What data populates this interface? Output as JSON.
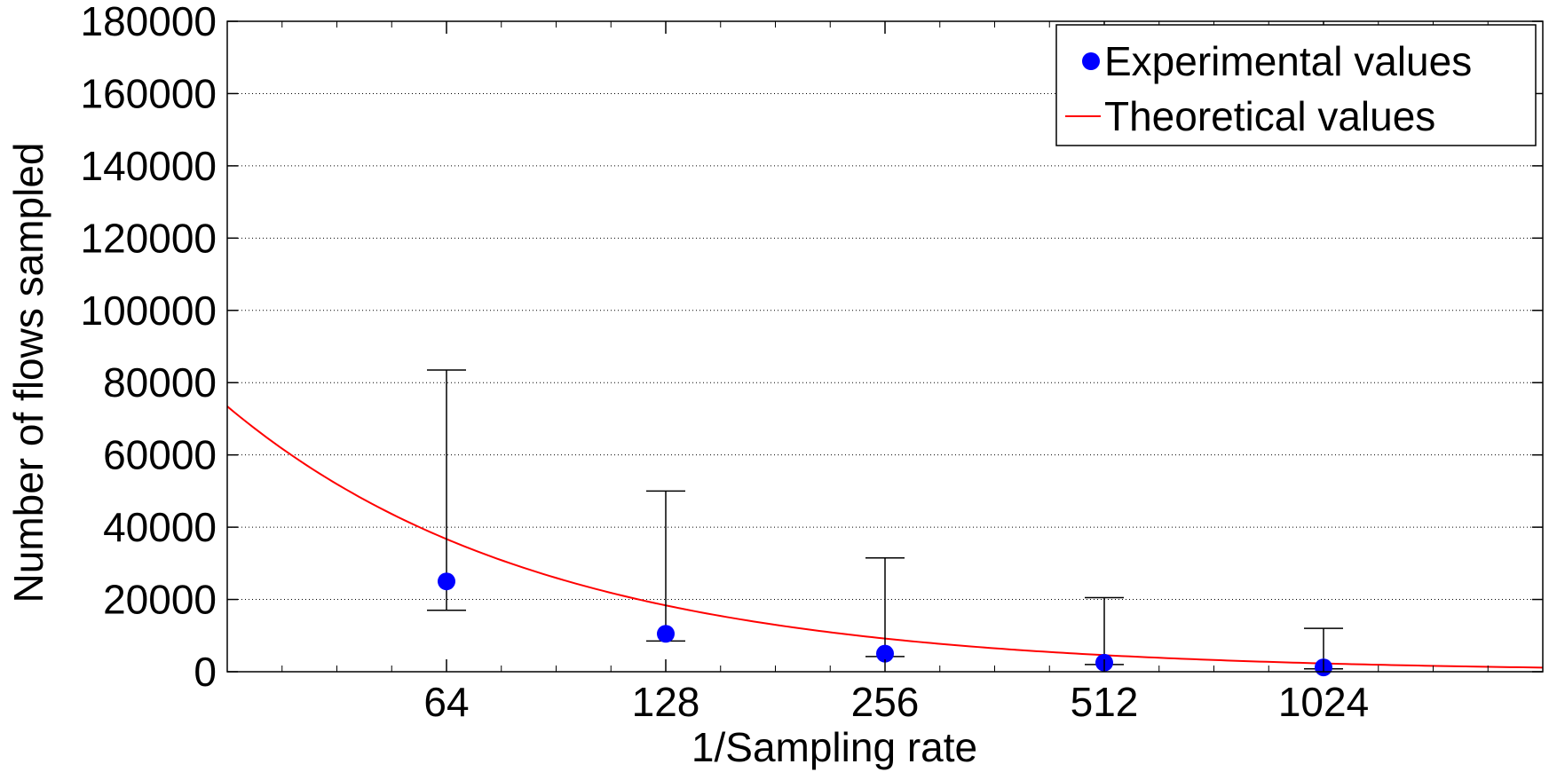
{
  "chart_data": {
    "type": "scatter",
    "xlabel": "1/Sampling rate",
    "ylabel": "Number of flows sampled",
    "x_scale": "log2",
    "xlim": [
      32,
      2048
    ],
    "ylim": [
      0,
      180000
    ],
    "x_ticks": [
      64,
      128,
      256,
      512,
      1024
    ],
    "x_tick_labels": [
      "64",
      "128",
      "256",
      "512",
      "1024"
    ],
    "y_ticks": [
      0,
      20000,
      40000,
      60000,
      80000,
      100000,
      120000,
      140000,
      160000,
      180000
    ],
    "y_tick_labels": [
      "0",
      "20000",
      "40000",
      "60000",
      "80000",
      "100000",
      "120000",
      "140000",
      "160000",
      "180000"
    ],
    "grid": "horizontal dotted",
    "legend_position": "top-right",
    "series": [
      {
        "name": "Experimental values",
        "kind": "points-with-error-bars",
        "color": "#0000ff",
        "x": [
          64,
          128,
          256,
          512,
          1024
        ],
        "y": [
          25000,
          10500,
          5000,
          2500,
          1200
        ],
        "y_low": [
          17000,
          8500,
          4200,
          2000,
          800
        ],
        "y_high": [
          83500,
          50000,
          31500,
          20500,
          12000
        ]
      },
      {
        "name": "Theoretical values",
        "kind": "line",
        "color": "#ff0000",
        "formula": "2350000 / x",
        "x_range": [
          32,
          2048
        ]
      }
    ]
  }
}
